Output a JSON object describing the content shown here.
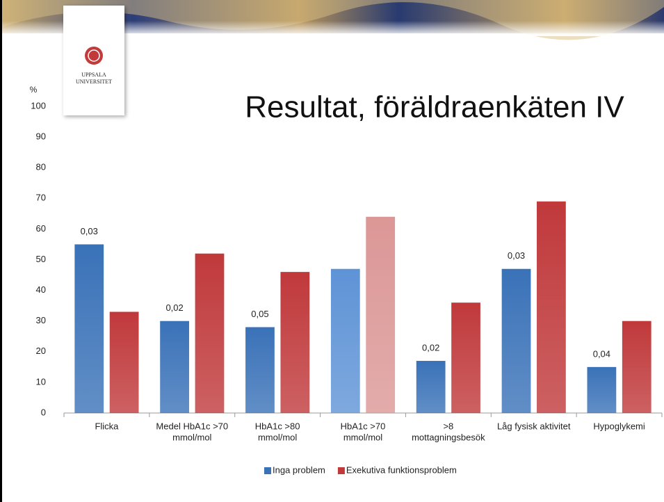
{
  "logo": {
    "lines": [
      "UPPSALA",
      "UNIVERSITET"
    ]
  },
  "chart_data": {
    "type": "bar",
    "title": "Resultat, föräldraenkäten IV",
    "y_label": "%",
    "categories": [
      [
        "Flicka"
      ],
      [
        "Medel HbA1c >70",
        "mmol/mol"
      ],
      [
        "HbA1c >80",
        "mmol/mol"
      ],
      [
        "HbA1c >70",
        "mmol/mol"
      ],
      [
        ">8",
        "mottagningsbesök"
      ],
      [
        "Låg fysisk aktivitet"
      ],
      [
        "Hypoglykemi"
      ]
    ],
    "series": [
      {
        "name": "Inga problem",
        "color": "#3a72b8",
        "colors": [
          "#3a72b8",
          "#3a72b8",
          "#3a72b8",
          "#5e93d6",
          "#3a72b8",
          "#3a72b8",
          "#3a72b8"
        ],
        "values": [
          55,
          30,
          28,
          47,
          17,
          47,
          15
        ]
      },
      {
        "name": "Exekutiva funktionsproblem",
        "color": "#c0393b",
        "colors": [
          "#c0393b",
          "#c0393b",
          "#c0393b",
          "#db9796",
          "#c0393b",
          "#c0393b",
          "#c0393b"
        ],
        "values": [
          33,
          52,
          46,
          64,
          36,
          69,
          30
        ]
      }
    ],
    "annotations": [
      "0,03",
      "0,02",
      "0,05",
      null,
      "0,02",
      "0,03",
      "0,04"
    ],
    "ylim": [
      0,
      100
    ],
    "yticks": [
      0,
      10,
      20,
      30,
      40,
      50,
      60,
      70,
      80,
      90,
      100
    ],
    "legend": "bottom"
  }
}
